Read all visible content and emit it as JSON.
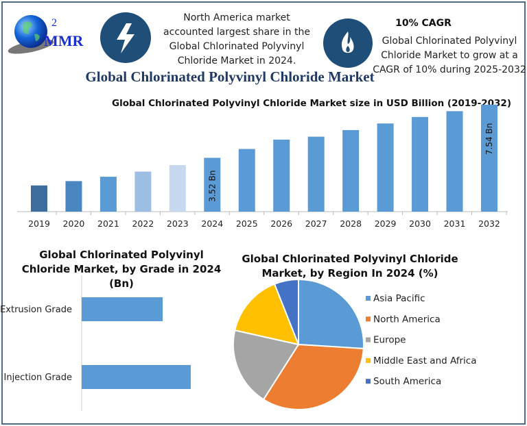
{
  "header": {
    "logo_text": "MMR",
    "logo_superscript": "2",
    "icons": [
      "lightning-icon",
      "flame-icon"
    ],
    "north_america_note": [
      "North America market",
      "accounted largest share in the",
      "Global Chlorinated Polyvinyl",
      "Chloride Market in 2024."
    ],
    "cagr_title": "10% CAGR",
    "cagr_note": [
      "Global Chlorinated Polyvinyl",
      "Chloride Market to grow at a",
      "CAGR of 10% during 2025-2032"
    ],
    "main_title": "Global Chlorinated Polyvinyl Chloride Market"
  },
  "colors": {
    "frame": "#4d6b88",
    "icon_circle": "#1f4e79",
    "title_blue": "#1f3864",
    "bar_blue": "#5b9bd5",
    "asia_pacific": "#5b9bd5",
    "north_america": "#ed7d31",
    "europe": "#a5a5a5",
    "middle_east_africa": "#ffc000",
    "south_america": "#4472c4"
  },
  "chart_data": [
    {
      "type": "bar",
      "title": "Global Chlorinated Polyvinyl Chloride Market size in USD Billion (2019-2032)",
      "categories": [
        "2019",
        "2020",
        "2021",
        "2022",
        "2023",
        "2024",
        "2025",
        "2026",
        "2027",
        "2028",
        "2029",
        "2030",
        "2031",
        "2032"
      ],
      "values": [
        1.43,
        1.76,
        2.09,
        2.48,
        2.97,
        3.52,
        4.19,
        4.9,
        5.12,
        5.62,
        6.12,
        6.61,
        7.05,
        7.54
      ],
      "bar_colors": [
        "#3d6f9c",
        "#4a86bf",
        "#5b9bd5",
        "#9dbfe3",
        "#c6d9f0",
        "#5b9bd5",
        "#5b9bd5",
        "#5b9bd5",
        "#5b9bd5",
        "#5b9bd5",
        "#5b9bd5",
        "#5b9bd5",
        "#5b9bd5",
        "#5b9bd5"
      ],
      "data_labels": {
        "2024": "3.52 Bn",
        "2032": "7.54 Bn"
      },
      "ylim": [
        -0.55,
        8
      ],
      "grid": false,
      "xlabel": "",
      "ylabel": ""
    },
    {
      "type": "bar",
      "orientation": "horizontal",
      "title": "Global Chlorinated Polyvinyl Chloride Market, by Grade in 2024 (Bn)",
      "title_lines": [
        "Global Chlorinated Polyvinyl",
        "Chloride Market, by Grade in 2024",
        "(Bn)"
      ],
      "categories": [
        "Extrusion Grade",
        "Injection Grade"
      ],
      "values": [
        1.5,
        2.02
      ],
      "grid": false
    },
    {
      "type": "pie",
      "title": "Global Chlorinated Polyvinyl Chloride Market, by Region In 2024 (%)",
      "title_lines": [
        "Global Chlorinated Polyvinyl Chloride",
        "Market, by Region In 2024 (%)"
      ],
      "categories": [
        "Asia Pacific",
        "North America",
        "Europe",
        "Middle East and Africa",
        "South America"
      ],
      "values": [
        26,
        33,
        19.5,
        15.5,
        6
      ],
      "legend_position": "right"
    }
  ]
}
